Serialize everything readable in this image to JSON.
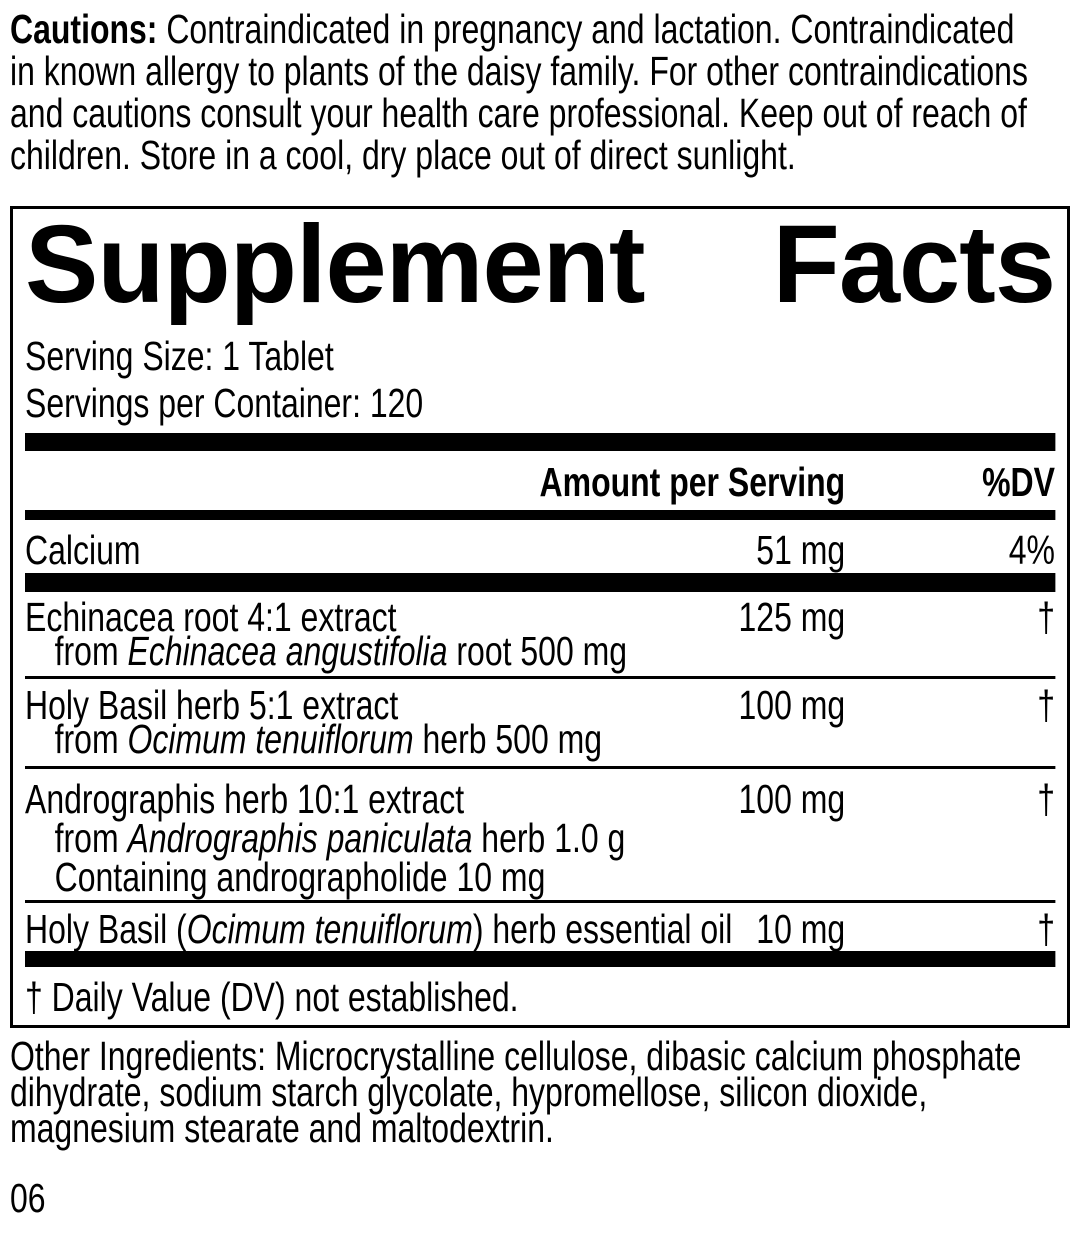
{
  "cautions": {
    "label": "Cautions:",
    "text": " Contraindicated in pregnancy and lactation. Contraindicated\nin known allergy to plants of the daisy family. For other contraindications\nand cautions consult your health care professional. Keep out of reach of\nchildren. Store in a cool, dry place out of direct sunlight."
  },
  "supplement_facts": {
    "title_word1": "Supplement",
    "title_word2": "Facts",
    "serving_size": "Serving Size: 1 Tablet",
    "servings_per_container": "Servings per Container: 120",
    "header": {
      "amount": "Amount per Serving",
      "dv": "%DV"
    },
    "rows": [
      {
        "name_pre": "Calcium",
        "name_italic": "",
        "name_post": "",
        "amount": "51 mg",
        "dv": "4%",
        "sub_lines": []
      },
      {
        "name_pre": "Echinacea root 4:1 extract",
        "name_italic": "",
        "name_post": "",
        "amount": "125 mg",
        "dv": "†",
        "sub_lines": [
          {
            "pre": "from ",
            "italic": "Echinacea angustifolia",
            "post": " root 500 mg"
          }
        ]
      },
      {
        "name_pre": "Holy Basil herb 5:1 extract",
        "name_italic": "",
        "name_post": "",
        "amount": "100 mg",
        "dv": "†",
        "sub_lines": [
          {
            "pre": "from ",
            "italic": "Ocimum tenuiflorum",
            "post": " herb 500 mg"
          }
        ]
      },
      {
        "name_pre": "Andrographis herb 10:1 extract",
        "name_italic": "",
        "name_post": "",
        "amount": "100 mg",
        "dv": "†",
        "sub_lines": [
          {
            "pre": "from ",
            "italic": "Andrographis paniculata",
            "post": " herb 1.0 g"
          },
          {
            "pre": "Containing andrographolide 10 mg",
            "italic": "",
            "post": ""
          }
        ]
      },
      {
        "name_pre": "Holy Basil (",
        "name_italic": "Ocimum tenuiflorum",
        "name_post": ") herb essential oil",
        "amount": "10 mg",
        "dv": "†",
        "sub_lines": []
      }
    ],
    "footnote": "† Daily Value (DV) not established."
  },
  "other_ingredients": "Other Ingredients: Microcrystalline cellulose, dibasic calcium phosphate\ndihydrate, sodium starch glycolate, hypromellose, silicon dioxide,\nmagnesium stearate and maltodextrin.",
  "code": "06",
  "colors": {
    "ink": "#000000",
    "paper": "#ffffff"
  }
}
